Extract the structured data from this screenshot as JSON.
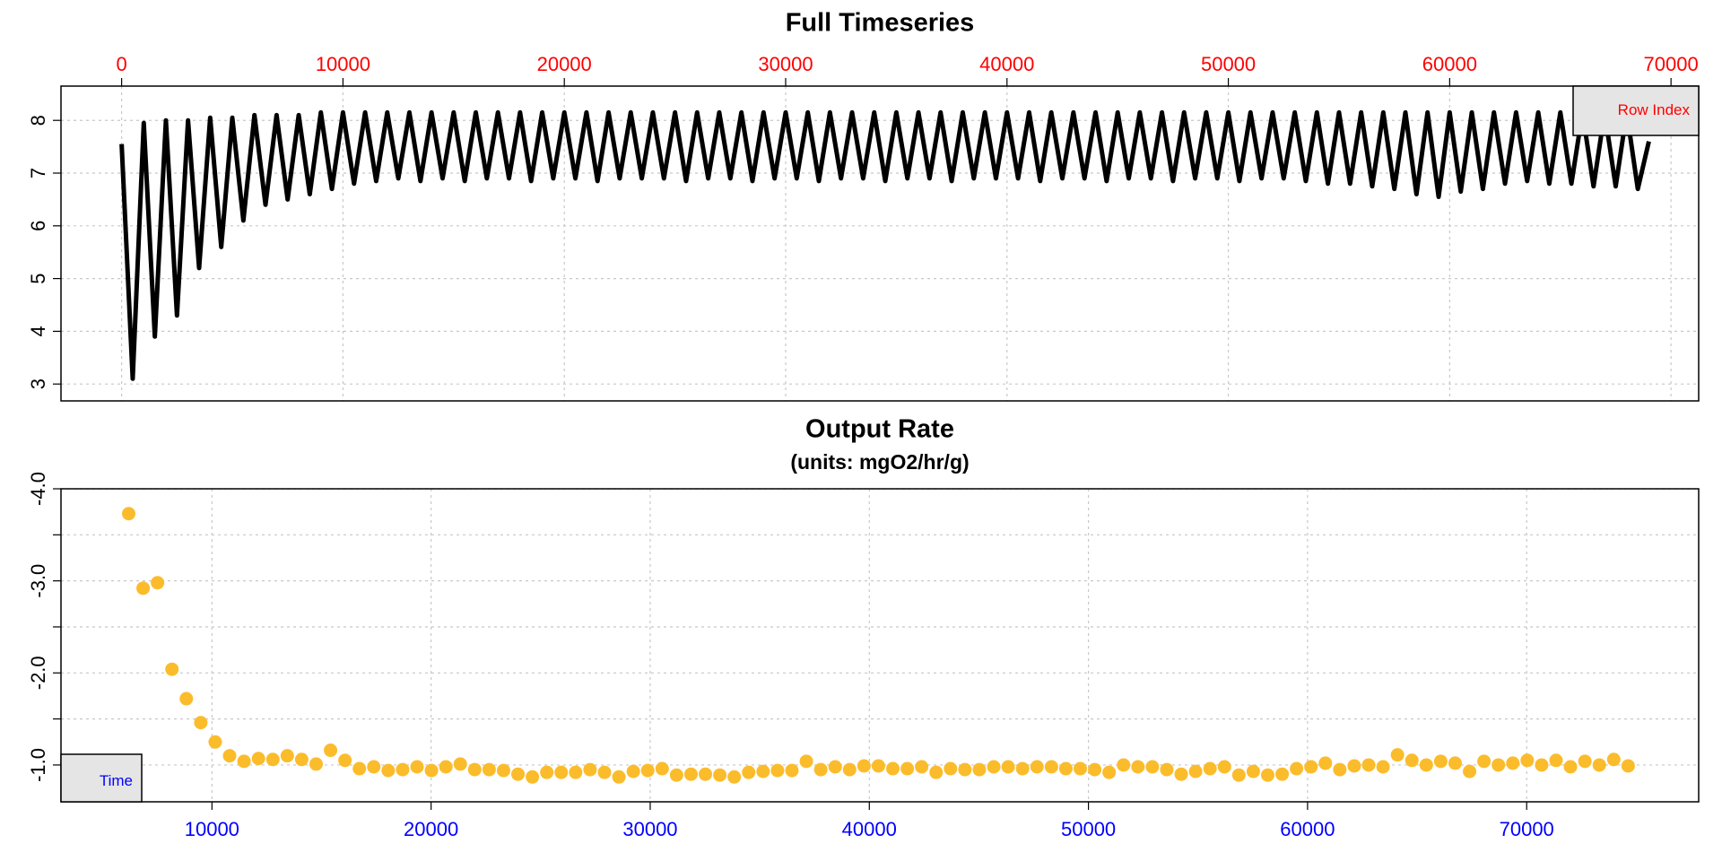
{
  "chart_data": [
    {
      "type": "line",
      "title": "Full Timeseries",
      "color": "#000000",
      "axis_color": "#ff0000",
      "x_label": "Row Index",
      "label_corner": "top-right",
      "grid": true,
      "xlim": [
        -2740,
        71250
      ],
      "ylim": [
        2.68,
        8.65
      ],
      "xticks": [
        0,
        10000,
        20000,
        30000,
        40000,
        50000,
        60000,
        70000
      ],
      "yticks": [
        3,
        4,
        5,
        6,
        7,
        8
      ],
      "x": [
        0,
        500,
        1000,
        1500,
        2000,
        2500,
        3000,
        3500,
        4000,
        4500,
        5000,
        5500,
        6000,
        6500,
        7000,
        7500,
        8000,
        8500,
        9000,
        9500,
        10000,
        10500,
        11000,
        11500,
        12000,
        12500,
        13000,
        13500,
        14000,
        14500,
        15000,
        15500,
        16000,
        16500,
        17000,
        17500,
        18000,
        18500,
        19000,
        19500,
        20000,
        20500,
        21000,
        21500,
        22000,
        22500,
        23000,
        23500,
        24000,
        24500,
        25000,
        25500,
        26000,
        26500,
        27000,
        27500,
        28000,
        28500,
        29000,
        29500,
        30000,
        30500,
        31000,
        31500,
        32000,
        32500,
        33000,
        33500,
        34000,
        34500,
        35000,
        35500,
        36000,
        36500,
        37000,
        37500,
        38000,
        38500,
        39000,
        39500,
        40000,
        40500,
        41000,
        41500,
        42000,
        42500,
        43000,
        43500,
        44000,
        44500,
        45000,
        45500,
        46000,
        46500,
        47000,
        47500,
        48000,
        48500,
        49000,
        49500,
        50000,
        50500,
        51000,
        51500,
        52000,
        52500,
        53000,
        53500,
        54000,
        54500,
        55000,
        55500,
        56000,
        56500,
        57000,
        57500,
        58000,
        58500,
        59000,
        59500,
        60000,
        60500,
        61000,
        61500,
        62000,
        62500,
        63000,
        63500,
        64000,
        64500,
        65000,
        65500,
        66000,
        66500,
        67000,
        67500,
        68000,
        68500,
        69000
      ],
      "values": [
        7.55,
        3.1,
        7.95,
        3.9,
        8.0,
        4.3,
        8.0,
        5.2,
        8.05,
        5.6,
        8.05,
        6.1,
        8.1,
        6.4,
        8.1,
        6.5,
        8.1,
        6.6,
        8.15,
        6.7,
        8.15,
        6.8,
        8.15,
        6.85,
        8.15,
        6.9,
        8.15,
        6.85,
        8.15,
        6.9,
        8.15,
        6.85,
        8.15,
        6.9,
        8.15,
        6.9,
        8.15,
        6.85,
        8.15,
        6.9,
        8.15,
        6.9,
        8.15,
        6.85,
        8.15,
        6.9,
        8.15,
        6.9,
        8.15,
        6.9,
        8.15,
        6.85,
        8.15,
        6.9,
        8.15,
        6.9,
        8.15,
        6.85,
        8.15,
        6.9,
        8.15,
        6.9,
        8.15,
        6.85,
        8.15,
        6.9,
        8.15,
        6.9,
        8.15,
        6.85,
        8.15,
        6.9,
        8.15,
        6.9,
        8.15,
        6.85,
        8.15,
        6.9,
        8.15,
        6.9,
        8.15,
        6.9,
        8.15,
        6.85,
        8.15,
        6.9,
        8.15,
        6.9,
        8.15,
        6.85,
        8.15,
        6.9,
        8.15,
        6.9,
        8.15,
        6.85,
        8.15,
        6.9,
        8.15,
        6.9,
        8.15,
        6.85,
        8.15,
        6.9,
        8.15,
        6.9,
        8.15,
        6.85,
        8.15,
        6.8,
        8.15,
        6.8,
        8.15,
        6.75,
        8.15,
        6.7,
        8.15,
        6.6,
        8.15,
        6.55,
        8.15,
        6.65,
        8.15,
        6.7,
        8.15,
        6.8,
        8.15,
        6.85,
        8.15,
        6.8,
        8.15,
        6.8,
        8.15,
        6.75,
        8.15,
        6.75,
        8.15,
        6.7,
        7.6
      ]
    },
    {
      "type": "scatter",
      "title": "Output Rate",
      "subtitle": "(units: mgO2/hr/g)",
      "color": "#fbbc2c",
      "axis_color": "#0000ff",
      "x_label": "Time",
      "label_corner": "bottom-left",
      "grid": true,
      "xlim": [
        3110,
        77850
      ],
      "ylim": [
        -0.6,
        -4.0
      ],
      "xticks": [
        10000,
        20000,
        30000,
        40000,
        50000,
        60000,
        70000
      ],
      "yticks": [
        {
          "value": -1,
          "label": "-1.0"
        },
        {
          "value": -2,
          "label": "-2.0"
        },
        {
          "value": -3,
          "label": "-3.0"
        },
        {
          "value": -4,
          "label": "-4.0"
        }
      ],
      "yminor": [
        -1.5,
        -2.5,
        -3.5
      ],
      "x": [
        6200,
        6858,
        7516,
        8174,
        8832,
        9490,
        10148,
        10806,
        11464,
        12122,
        12780,
        13438,
        14096,
        14754,
        15412,
        16070,
        16728,
        17386,
        18044,
        18702,
        19360,
        20018,
        20676,
        21334,
        21992,
        22650,
        23308,
        23966,
        24624,
        25282,
        25940,
        26598,
        27256,
        27914,
        28572,
        29230,
        29888,
        30546,
        31204,
        31862,
        32520,
        33178,
        33836,
        34494,
        35152,
        35810,
        36468,
        37126,
        37784,
        38442,
        39100,
        39758,
        40416,
        41074,
        41732,
        42390,
        43048,
        43706,
        44364,
        45022,
        45680,
        46338,
        46996,
        47654,
        48312,
        48970,
        49628,
        50286,
        50944,
        51602,
        52260,
        52918,
        53576,
        54234,
        54892,
        55550,
        56208,
        56866,
        57524,
        58182,
        58840,
        59498,
        60156,
        60814,
        61472,
        62130,
        62788,
        63446,
        64104,
        64762,
        65420,
        66078,
        66736,
        67394,
        68052,
        68710,
        69368,
        70026,
        70684,
        71342,
        72000,
        72658,
        73316,
        73974,
        74632
      ],
      "values": [
        -3.73,
        -2.92,
        -2.98,
        -2.04,
        -1.72,
        -1.46,
        -1.25,
        -1.1,
        -1.04,
        -1.07,
        -1.06,
        -1.1,
        -1.06,
        -1.01,
        -1.16,
        -1.05,
        -0.96,
        -0.98,
        -0.94,
        -0.95,
        -0.98,
        -0.94,
        -0.98,
        -1.01,
        -0.95,
        -0.95,
        -0.94,
        -0.9,
        -0.87,
        -0.92,
        -0.92,
        -0.92,
        -0.95,
        -0.92,
        -0.87,
        -0.93,
        -0.94,
        -0.96,
        -0.89,
        -0.9,
        -0.9,
        -0.89,
        -0.87,
        -0.92,
        -0.93,
        -0.94,
        -0.94,
        -1.04,
        -0.95,
        -0.98,
        -0.95,
        -0.99,
        -0.99,
        -0.96,
        -0.96,
        -0.98,
        -0.92,
        -0.96,
        -0.95,
        -0.95,
        -0.98,
        -0.98,
        -0.96,
        -0.98,
        -0.98,
        -0.96,
        -0.96,
        -0.95,
        -0.92,
        -1.0,
        -0.98,
        -0.98,
        -0.95,
        -0.9,
        -0.93,
        -0.96,
        -0.98,
        -0.89,
        -0.93,
        -0.89,
        -0.9,
        -0.96,
        -0.98,
        -1.02,
        -0.95,
        -0.99,
        -1.0,
        -0.98,
        -1.11,
        -1.05,
        -1.0,
        -1.04,
        -1.02,
        -0.93,
        -1.04,
        -1.0,
        -1.02,
        -1.05,
        -1.0,
        -1.05,
        -0.98,
        -1.04,
        -1.0,
        -1.06,
        -0.99
      ]
    }
  ]
}
